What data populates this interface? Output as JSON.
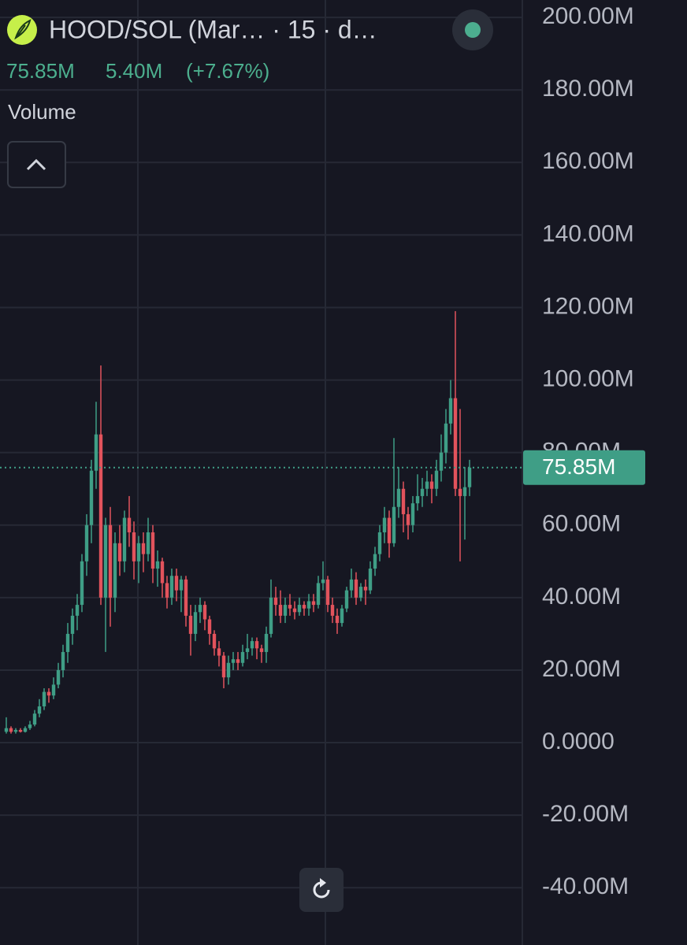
{
  "header": {
    "title": "HOOD/SOL (Mar…  · 15 · d…",
    "last": "75.85M",
    "change": "5.40M",
    "change_pct": "(+7.67%)",
    "pane_label": "Volume"
  },
  "chart_data": {
    "type": "candlestick",
    "up_color": "#3f9e86",
    "down_color": "#e2535c",
    "grid": true,
    "ylim": [
      -55.8,
      204.8
    ],
    "yticks": [
      {
        "value": 200,
        "label": "200.00M"
      },
      {
        "value": 180,
        "label": "180.00M"
      },
      {
        "value": 160,
        "label": "160.00M"
      },
      {
        "value": 140,
        "label": "140.00M"
      },
      {
        "value": 120,
        "label": "120.00M"
      },
      {
        "value": 100,
        "label": "100.00M"
      },
      {
        "value": 80,
        "label": "80.00M"
      },
      {
        "value": 60,
        "label": "60.00M"
      },
      {
        "value": 40,
        "label": "40.00M"
      },
      {
        "value": 20,
        "label": "20.00M"
      },
      {
        "value": 0,
        "label": "0.0000"
      },
      {
        "value": -20,
        "label": "-20.00M"
      },
      {
        "value": -40,
        "label": "-40.00M"
      }
    ],
    "last_price": {
      "value": 75.85,
      "label": "75.85M"
    },
    "candles": [
      [
        3,
        7,
        2.5,
        4
      ],
      [
        4,
        4.5,
        2.5,
        3
      ],
      [
        3,
        4,
        2.5,
        3.5
      ],
      [
        3.5,
        4,
        2.8,
        3
      ],
      [
        3,
        4.5,
        2.8,
        4
      ],
      [
        4,
        6,
        3.5,
        5
      ],
      [
        5,
        9,
        4.5,
        8
      ],
      [
        8,
        12,
        7,
        10
      ],
      [
        10,
        15,
        9,
        14
      ],
      [
        14,
        15,
        11,
        13
      ],
      [
        13,
        18,
        12,
        16
      ],
      [
        16,
        22,
        15,
        20
      ],
      [
        20,
        27,
        18,
        25
      ],
      [
        25,
        33,
        22,
        30
      ],
      [
        30,
        37,
        27,
        35
      ],
      [
        35,
        41,
        31,
        38
      ],
      [
        38,
        52,
        36,
        50
      ],
      [
        50,
        63,
        46,
        60
      ],
      [
        60,
        78,
        55,
        75
      ],
      [
        75,
        94,
        70,
        85
      ],
      [
        85,
        104,
        38,
        40
      ],
      [
        40,
        62,
        25,
        60
      ],
      [
        60,
        65,
        32,
        40
      ],
      [
        40,
        58,
        36,
        55
      ],
      [
        55,
        60,
        46,
        50
      ],
      [
        50,
        64,
        47,
        62
      ],
      [
        62,
        68,
        54,
        58
      ],
      [
        58,
        61,
        45,
        50
      ],
      [
        50,
        57,
        44,
        55
      ],
      [
        55,
        58,
        47,
        52
      ],
      [
        52,
        62,
        50,
        58
      ],
      [
        58,
        60,
        44,
        48
      ],
      [
        48,
        53,
        43,
        50
      ],
      [
        50,
        51,
        40,
        44
      ],
      [
        44,
        46,
        37,
        40
      ],
      [
        40,
        48,
        38,
        46
      ],
      [
        46,
        48,
        39,
        42
      ],
      [
        42,
        46,
        36,
        45
      ],
      [
        45,
        46,
        32,
        35
      ],
      [
        35,
        38,
        24,
        30
      ],
      [
        30,
        38,
        28,
        36
      ],
      [
        36,
        40,
        33,
        38
      ],
      [
        38,
        39,
        31,
        34
      ],
      [
        34,
        35,
        27,
        30
      ],
      [
        30,
        31,
        24,
        26
      ],
      [
        26,
        28,
        21,
        24
      ],
      [
        24,
        25,
        15,
        18
      ],
      [
        18,
        24,
        16,
        22
      ],
      [
        22,
        25,
        20,
        23
      ],
      [
        23,
        25,
        20,
        22
      ],
      [
        22,
        27,
        21,
        25
      ],
      [
        25,
        30,
        23,
        26
      ],
      [
        26,
        29,
        24,
        28
      ],
      [
        28,
        29,
        23,
        26
      ],
      [
        26,
        27,
        22,
        25
      ],
      [
        25,
        32,
        22,
        30
      ],
      [
        30,
        45,
        29,
        40
      ],
      [
        40,
        43,
        35,
        38
      ],
      [
        38,
        42,
        33,
        35
      ],
      [
        35,
        40,
        33,
        38
      ],
      [
        38,
        41,
        35,
        37
      ],
      [
        37,
        39,
        34,
        36
      ],
      [
        36,
        40,
        35,
        38
      ],
      [
        38,
        39,
        35,
        37
      ],
      [
        37,
        41,
        35,
        39
      ],
      [
        39,
        41,
        36,
        38
      ],
      [
        38,
        46,
        37,
        44
      ],
      [
        44,
        50,
        42,
        45
      ],
      [
        45,
        46,
        36,
        38
      ],
      [
        38,
        40,
        33,
        35
      ],
      [
        35,
        37,
        30,
        33
      ],
      [
        33,
        38,
        32,
        37
      ],
      [
        37,
        43,
        36,
        42
      ],
      [
        42,
        48,
        40,
        45
      ],
      [
        45,
        47,
        38,
        40
      ],
      [
        40,
        44,
        39,
        43
      ],
      [
        43,
        45,
        38,
        42
      ],
      [
        42,
        50,
        41,
        48
      ],
      [
        48,
        54,
        46,
        52
      ],
      [
        52,
        60,
        50,
        58
      ],
      [
        58,
        65,
        55,
        62
      ],
      [
        62,
        64,
        51,
        55
      ],
      [
        55,
        84,
        54,
        65
      ],
      [
        65,
        76,
        62,
        70
      ],
      [
        70,
        72,
        58,
        63
      ],
      [
        63,
        65,
        56,
        60
      ],
      [
        60,
        68,
        58,
        66
      ],
      [
        66,
        74,
        64,
        68
      ],
      [
        68,
        73,
        65,
        70
      ],
      [
        70,
        75,
        68,
        72
      ],
      [
        72,
        74,
        66,
        70
      ],
      [
        70,
        78,
        68,
        75
      ],
      [
        75,
        85,
        72,
        80
      ],
      [
        80,
        92,
        77,
        88
      ],
      [
        88,
        100,
        85,
        95
      ],
      [
        95,
        119,
        68,
        70
      ],
      [
        70,
        92,
        50,
        68
      ],
      [
        68,
        76,
        56,
        70.45
      ],
      [
        70.45,
        78,
        68,
        75.85
      ]
    ]
  }
}
